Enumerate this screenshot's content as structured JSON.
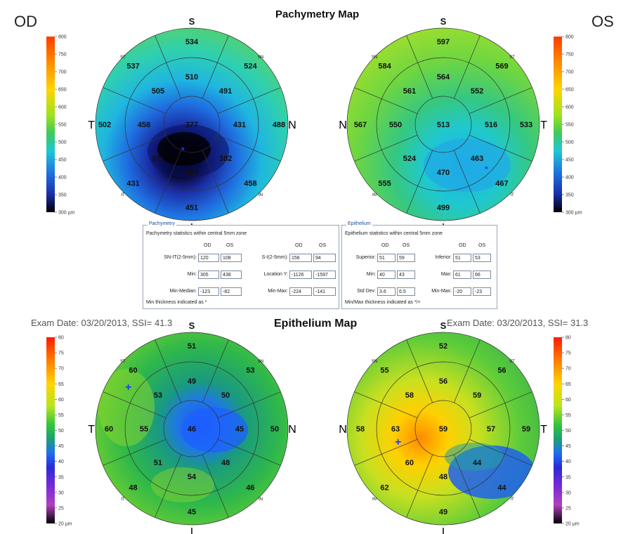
{
  "labels": {
    "od": "OD",
    "os": "OS",
    "pachy_title": "Pachymetry Map",
    "epi_title": "Epithelium Map",
    "exam_left": "Exam Date: 03/20/2013, SSI= 41.3",
    "exam_right": "Exam Date: 03/20/2013, SSI= 31.3"
  },
  "colorbars": {
    "pachy": [
      "800",
      "750",
      "700",
      "650",
      "600",
      "550",
      "500",
      "450",
      "400",
      "350",
      "300 µm"
    ],
    "epi": [
      "80",
      "75",
      "70",
      "65",
      "60",
      "55",
      "50",
      "45",
      "40",
      "35",
      "30",
      "25",
      "20 µm"
    ]
  },
  "maps": {
    "pachy_od": {
      "S": "S",
      "I": "I",
      "left": "T",
      "right": "N",
      "sub": {
        "tl": "ST",
        "tr": "SN",
        "bl": "IT",
        "br": "IN"
      },
      "center": "377",
      "inner": {
        "s": "510",
        "se": "491",
        "e": "431",
        "sw": "505",
        "w": "458",
        "nw": "371",
        "n": "382",
        "ne": "458",
        "i": "354"
      },
      "outer": {
        "s": "534",
        "sn": "524",
        "n": "488",
        "in": "458",
        "i": "451",
        "it": "431",
        "t": "502",
        "st": "537"
      },
      "extra": {
        "c2": "354"
      }
    },
    "pachy_os": {
      "S": "S",
      "I": "I",
      "left": "N",
      "right": "T",
      "sub": {
        "tl": "SN",
        "tr": "ST",
        "bl": "IN",
        "br": "IT"
      },
      "center": "513",
      "inner": {
        "a": "564",
        "b": "552",
        "c": "516",
        "d": "463",
        "e": "470",
        "f": "524",
        "g": "550",
        "h": "561"
      },
      "outer": {
        "s": "597",
        "st": "569",
        "t": "533",
        "it": "467",
        "i": "499",
        "in": "555",
        "n": "567",
        "sn": "584"
      }
    },
    "epi_od": {
      "S": "S",
      "I": "I",
      "left": "T",
      "right": "N",
      "sub": {
        "tl": "ST",
        "tr": "SN",
        "bl": "IT",
        "br": "IN"
      },
      "center": "46",
      "inner": {
        "a": "49",
        "b": "50",
        "c": "45",
        "d": "48",
        "e": "54",
        "f": "51",
        "g": "55",
        "h": "53"
      },
      "outer": {
        "s": "51",
        "sn": "53",
        "n": "50",
        "in": "46",
        "i": "45",
        "it": "48",
        "t": "60",
        "st": "60"
      }
    },
    "epi_os": {
      "S": "S",
      "I": "I",
      "left": "N",
      "right": "T",
      "sub": {
        "tl": "SN",
        "tr": "ST",
        "bl": "IN",
        "br": "IT"
      },
      "center": "59",
      "inner": {
        "a": "56",
        "b": "59",
        "c": "57",
        "d": "44",
        "e": "48",
        "f": "60",
        "g": "63",
        "h": "58"
      },
      "outer": {
        "s": "52",
        "st": "56",
        "t": "59",
        "it": "44",
        "i": "49",
        "in": "62",
        "n": "58",
        "sn": "55"
      }
    }
  },
  "pachy_stats": {
    "title": "Pachymetry",
    "desc": "Pachymetry statistics within central 5mm zone",
    "od": "OD",
    "os": "OS",
    "rows_left": [
      {
        "label": "SN-IT(2-5mm):",
        "od": "120",
        "os": "108"
      },
      {
        "label": "Min:",
        "od": "305",
        "os": "438"
      },
      {
        "label": "Min-Median:",
        "od": "-123",
        "os": "-82"
      }
    ],
    "rows_right": [
      {
        "label": "S-I(2-5mm):",
        "od": "156",
        "os": "94"
      },
      {
        "label": "Location Y:",
        "od": "-1126",
        "os": "-1597"
      },
      {
        "label": "Min-Max:",
        "od": "-224",
        "os": "-141"
      }
    ],
    "note": "Min thickness indicated as *"
  },
  "epi_stats": {
    "title": "Epithelium",
    "desc": "Epithelium statistics within central 5mm zone",
    "od": "OD",
    "os": "OS",
    "rows_left": [
      {
        "label": "Superior:",
        "od": "51",
        "os": "59"
      },
      {
        "label": "Min:",
        "od": "40",
        "os": "43"
      },
      {
        "label": "Std Dev:",
        "od": "3.6",
        "os": "6.5"
      }
    ],
    "rows_right": [
      {
        "label": "Inferior:",
        "od": "51",
        "os": "53"
      },
      {
        "label": "Max:",
        "od": "61",
        "os": "66"
      },
      {
        "label": "Min-Max:",
        "od": "-20",
        "os": "-23"
      }
    ],
    "note": "Min/Max thickness indicated as */+"
  }
}
